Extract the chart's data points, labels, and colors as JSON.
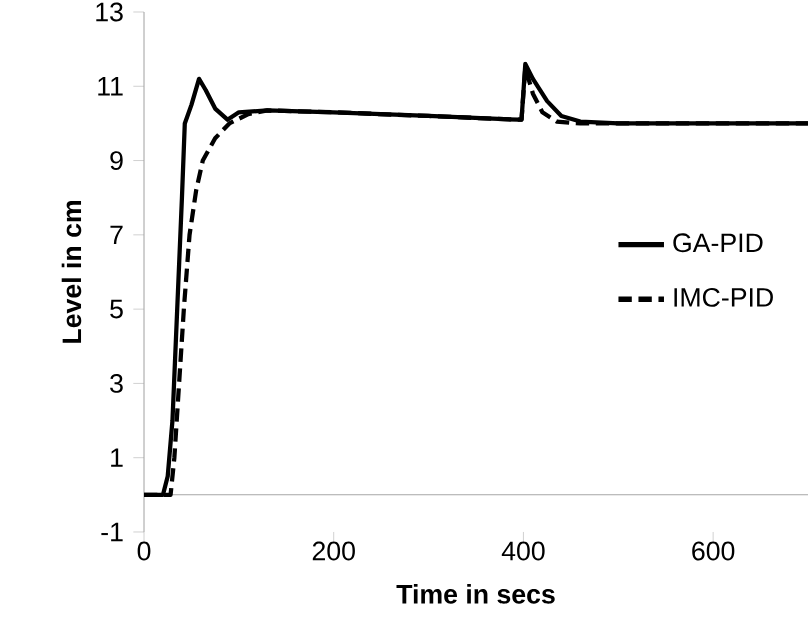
{
  "chart_data": {
    "type": "line",
    "xlabel": "Time in secs",
    "ylabel": "Level in cm",
    "xlim": [
      0,
      700
    ],
    "ylim": [
      -1,
      13
    ],
    "xticks": [
      0,
      200,
      400,
      600
    ],
    "yticks": [
      -1,
      1,
      3,
      5,
      7,
      9,
      11,
      13
    ],
    "legend": "right",
    "series": [
      {
        "name": "GA-PID",
        "color": "#000000",
        "line_style": "solid",
        "x": [
          0,
          20,
          25,
          30,
          35,
          40,
          43,
          50,
          58,
          65,
          75,
          88,
          100,
          130,
          200,
          300,
          395,
          398,
          402,
          410,
          425,
          440,
          460,
          500,
          700
        ],
        "values": [
          0,
          0,
          0.5,
          2,
          5,
          8,
          10,
          10.5,
          11.2,
          10.9,
          10.4,
          10.1,
          10.3,
          10.35,
          10.3,
          10.2,
          10.1,
          10.1,
          11.6,
          11.2,
          10.6,
          10.2,
          10.05,
          10,
          10
        ]
      },
      {
        "name": "IMC-PID",
        "color": "#000000",
        "line_style": "dashed",
        "x": [
          0,
          28,
          32,
          37,
          42,
          48,
          55,
          62,
          75,
          90,
          110,
          130,
          200,
          300,
          395,
          398,
          402,
          410,
          420,
          435,
          460,
          700
        ],
        "values": [
          0,
          0,
          1,
          3,
          5,
          7,
          8.2,
          9,
          9.6,
          10,
          10.25,
          10.35,
          10.3,
          10.2,
          10.1,
          10.1,
          11.5,
          10.8,
          10.3,
          10.05,
          10,
          10
        ]
      }
    ]
  }
}
